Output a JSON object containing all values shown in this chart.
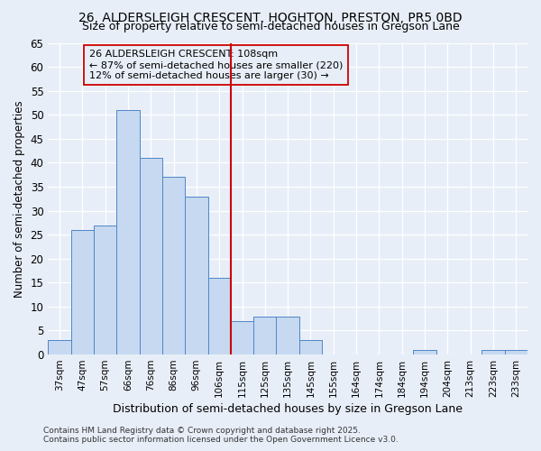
{
  "title1": "26, ALDERSLEIGH CRESCENT, HOGHTON, PRESTON, PR5 0BD",
  "title2": "Size of property relative to semi-detached houses in Gregson Lane",
  "xlabel": "Distribution of semi-detached houses by size in Gregson Lane",
  "ylabel": "Number of semi-detached properties",
  "footer1": "Contains HM Land Registry data © Crown copyright and database right 2025.",
  "footer2": "Contains public sector information licensed under the Open Government Licence v3.0.",
  "categories": [
    "37sqm",
    "47sqm",
    "57sqm",
    "66sqm",
    "76sqm",
    "86sqm",
    "96sqm",
    "106sqm",
    "115sqm",
    "125sqm",
    "135sqm",
    "145sqm",
    "155sqm",
    "164sqm",
    "174sqm",
    "184sqm",
    "194sqm",
    "204sqm",
    "213sqm",
    "223sqm",
    "233sqm"
  ],
  "values": [
    3,
    26,
    27,
    51,
    41,
    37,
    33,
    16,
    7,
    8,
    8,
    3,
    0,
    0,
    0,
    0,
    1,
    0,
    0,
    1,
    1
  ],
  "bar_color": "#c6d9f0",
  "bar_edge_color": "#4e86c8",
  "bg_color": "#e8eef8",
  "grid_color": "#ffffff",
  "vline_after_index": 7,
  "vline_color": "#cc0000",
  "annotation_title": "26 ALDERSLEIGH CRESCENT: 108sqm",
  "annotation_line1": "← 87% of semi-detached houses are smaller (220)",
  "annotation_line2": "12% of semi-detached houses are larger (30) →",
  "ylim": [
    0,
    65
  ],
  "yticks": [
    0,
    5,
    10,
    15,
    20,
    25,
    30,
    35,
    40,
    45,
    50,
    55,
    60,
    65
  ]
}
